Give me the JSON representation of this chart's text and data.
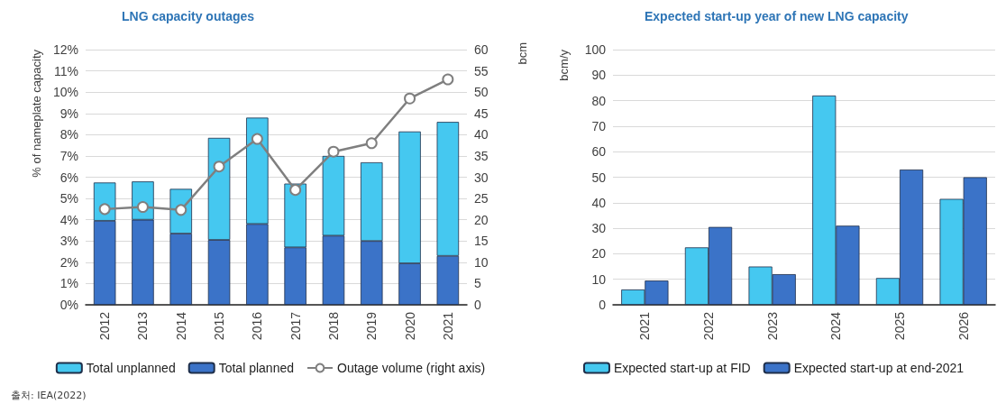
{
  "chart_data": [
    {
      "type": "bar",
      "title": "LNG capacity outages",
      "ylabel": "% of nameplate capacity",
      "y2label": "bcm",
      "categories": [
        "2012",
        "2013",
        "2014",
        "2015",
        "2016",
        "2017",
        "2018",
        "2019",
        "2020",
        "2021"
      ],
      "stacked": true,
      "series": [
        {
          "name": "Total planned",
          "color": "#3b73c8",
          "values": [
            3.95,
            4.0,
            3.35,
            3.05,
            3.8,
            2.7,
            3.25,
            3.0,
            1.95,
            2.3
          ]
        },
        {
          "name": "Total unplanned",
          "color": "#45c8f0",
          "values": [
            1.8,
            1.8,
            2.1,
            4.8,
            5.0,
            3.0,
            3.75,
            3.7,
            6.2,
            6.3
          ]
        },
        {
          "name": "Outage volume (right axis)",
          "type": "line",
          "axis": "y2",
          "color": "#7f7f7f",
          "values": [
            22.5,
            23,
            22.3,
            32.5,
            39,
            27,
            36,
            38,
            48.5,
            53
          ]
        }
      ],
      "marker": "circle",
      "ylim": [
        0,
        12
      ],
      "yticks": [
        {
          "value": 0,
          "label": "0%"
        },
        {
          "value": 1,
          "label": "1%"
        },
        {
          "value": 2,
          "label": "2%"
        },
        {
          "value": 3,
          "label": "3%"
        },
        {
          "value": 4,
          "label": "4%"
        },
        {
          "value": 5,
          "label": "5%"
        },
        {
          "value": 6,
          "label": "6%"
        },
        {
          "value": 7,
          "label": "7%"
        },
        {
          "value": 8,
          "label": "8%"
        },
        {
          "value": 9,
          "label": "9%"
        },
        {
          "value": 10,
          "label": "10%"
        },
        {
          "value": 11,
          "label": "11%"
        },
        {
          "value": 12,
          "label": "12%"
        }
      ],
      "y2lim": [
        0,
        60
      ],
      "y2ticks": [
        0,
        5,
        10,
        15,
        20,
        25,
        30,
        35,
        40,
        45,
        50,
        55,
        60
      ],
      "grid": "y",
      "legend": "bottom",
      "annotations": [
        "출처: IEA(2022)"
      ]
    },
    {
      "type": "bar",
      "title": "Expected start-up year of new LNG capacity",
      "ylabel": "bcm/y",
      "categories": [
        "2021",
        "2022",
        "2023",
        "2024",
        "2025",
        "2026"
      ],
      "series": [
        {
          "name": "Expected start-up at FID",
          "color": "#45c8f0",
          "values": [
            6,
            22.5,
            15,
            82,
            10.5,
            41.5
          ]
        },
        {
          "name": "Expected start-up at end-2021",
          "color": "#3b73c8",
          "values": [
            9.5,
            30.5,
            12,
            31,
            53,
            50
          ]
        }
      ],
      "ylim": [
        0,
        100
      ],
      "yticks": [
        0,
        10,
        20,
        30,
        40,
        50,
        60,
        70,
        80,
        90,
        100
      ],
      "grid": "y",
      "legend": "bottom"
    }
  ]
}
